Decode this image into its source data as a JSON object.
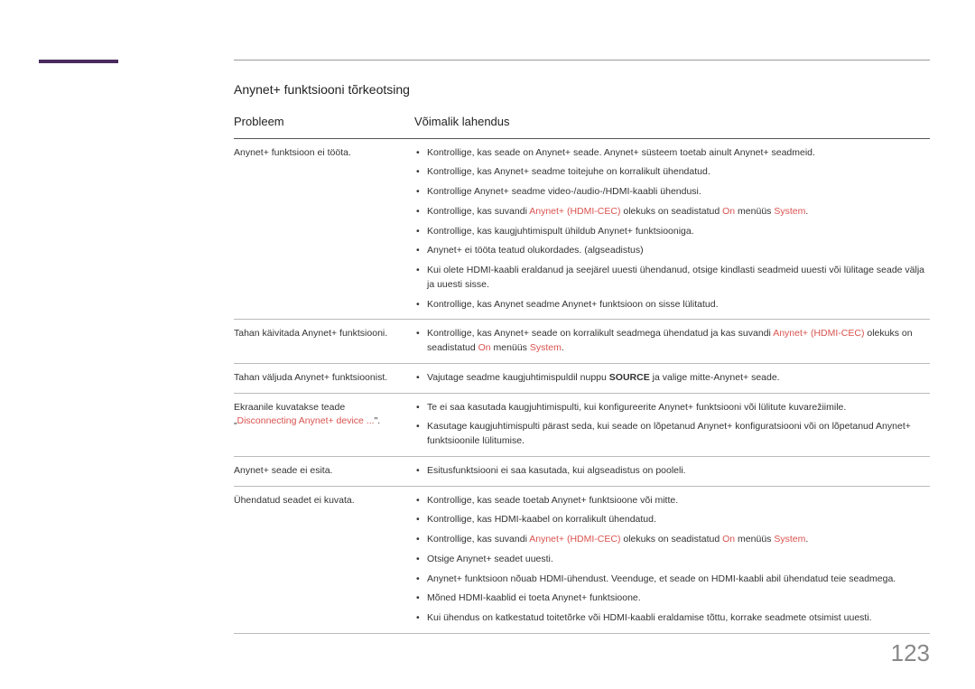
{
  "colors": {
    "accent_bar": "#4a2b5f",
    "highlight": "#d9534f",
    "text": "#333333",
    "page_number": "#888888",
    "border": "#999999",
    "header_border": "#555555"
  },
  "page_number": "123",
  "section_title": "Anynet+ funktsiooni tõrkeotsing",
  "headers": {
    "problem": "Probleem",
    "solution": "Võimalik lahendus"
  },
  "rows": [
    {
      "problem_parts": [
        {
          "text": "Anynet+ funktsioon ei tööta."
        }
      ],
      "solutions": [
        [
          {
            "text": "Kontrollige, kas seade on Anynet+ seade. Anynet+ süsteem toetab ainult Anynet+ seadmeid."
          }
        ],
        [
          {
            "text": "Kontrollige, kas Anynet+ seadme toitejuhe on korralikult ühendatud."
          }
        ],
        [
          {
            "text": "Kontrollige Anynet+ seadme video-/audio-/HDMI-kaabli ühendusi."
          }
        ],
        [
          {
            "text": "Kontrollige, kas suvandi "
          },
          {
            "text": "Anynet+ (HDMI-CEC)",
            "highlight": true
          },
          {
            "text": " olekuks on seadistatud "
          },
          {
            "text": "On",
            "highlight": true
          },
          {
            "text": " menüüs "
          },
          {
            "text": "System",
            "highlight": true
          },
          {
            "text": "."
          }
        ],
        [
          {
            "text": "Kontrollige, kas kaugjuhtimispult ühildub Anynet+ funktsiooniga."
          }
        ],
        [
          {
            "text": "Anynet+ ei tööta teatud olukordades. (algseadistus)"
          }
        ],
        [
          {
            "text": "Kui olete HDMI-kaabli eraldanud ja seejärel uuesti ühendanud, otsige kindlasti seadmeid uuesti või lülitage seade välja ja uuesti sisse."
          }
        ],
        [
          {
            "text": "Kontrollige, kas Anynet seadme Anynet+ funktsioon on sisse lülitatud."
          }
        ]
      ]
    },
    {
      "problem_parts": [
        {
          "text": "Tahan käivitada Anynet+ funktsiooni."
        }
      ],
      "solutions": [
        [
          {
            "text": "Kontrollige, kas Anynet+ seade on korralikult seadmega ühendatud ja kas suvandi "
          },
          {
            "text": "Anynet+ (HDMI-CEC)",
            "highlight": true
          },
          {
            "text": " olekuks on seadistatud "
          },
          {
            "text": "On",
            "highlight": true
          },
          {
            "text": " menüüs "
          },
          {
            "text": "System",
            "highlight": true
          },
          {
            "text": "."
          }
        ]
      ]
    },
    {
      "problem_parts": [
        {
          "text": "Tahan väljuda Anynet+ funktsioonist."
        }
      ],
      "solutions": [
        [
          {
            "text": "Vajutage seadme kaugjuhtimispuldil nuppu "
          },
          {
            "text": "SOURCE",
            "bold": true
          },
          {
            "text": " ja valige mitte-Anynet+ seade."
          }
        ]
      ]
    },
    {
      "problem_parts": [
        {
          "text": "Ekraanile kuvatakse teade „"
        },
        {
          "text": "Disconnecting Anynet+ device ...",
          "highlight": true
        },
        {
          "text": "\"."
        }
      ],
      "solutions": [
        [
          {
            "text": "Te ei saa kasutada kaugjuhtimispulti, kui konfigureerite Anynet+ funktsiooni või lülitute kuvarežiimile."
          }
        ],
        [
          {
            "text": "Kasutage kaugjuhtimispulti pärast seda, kui seade on lõpetanud Anynet+ konfiguratsiooni või on lõpetanud Anynet+ funktsioonile lülitumise."
          }
        ]
      ]
    },
    {
      "problem_parts": [
        {
          "text": "Anynet+ seade ei esita."
        }
      ],
      "solutions": [
        [
          {
            "text": "Esitusfunktsiooni ei saa kasutada, kui algseadistus on pooleli."
          }
        ]
      ]
    },
    {
      "problem_parts": [
        {
          "text": "Ühendatud seadet ei kuvata."
        }
      ],
      "solutions": [
        [
          {
            "text": "Kontrollige, kas seade toetab Anynet+ funktsioone või mitte."
          }
        ],
        [
          {
            "text": "Kontrollige, kas HDMI-kaabel on korralikult ühendatud."
          }
        ],
        [
          {
            "text": "Kontrollige, kas suvandi "
          },
          {
            "text": "Anynet+ (HDMI-CEC)",
            "highlight": true
          },
          {
            "text": " olekuks on seadistatud "
          },
          {
            "text": "On",
            "highlight": true
          },
          {
            "text": " menüüs "
          },
          {
            "text": "System",
            "highlight": true
          },
          {
            "text": "."
          }
        ],
        [
          {
            "text": "Otsige Anynet+ seadet uuesti."
          }
        ],
        [
          {
            "text": "Anynet+ funktsioon nõuab HDMI-ühendust. Veenduge, et seade on HDMI-kaabli abil ühendatud teie seadmega."
          }
        ],
        [
          {
            "text": "Mõned HDMI-kaablid ei toeta Anynet+ funktsioone."
          }
        ],
        [
          {
            "text": "Kui ühendus on katkestatud toitetõrke või HDMI-kaabli eraldamise tõttu, korrake seadmete otsimist uuesti."
          }
        ]
      ]
    }
  ]
}
